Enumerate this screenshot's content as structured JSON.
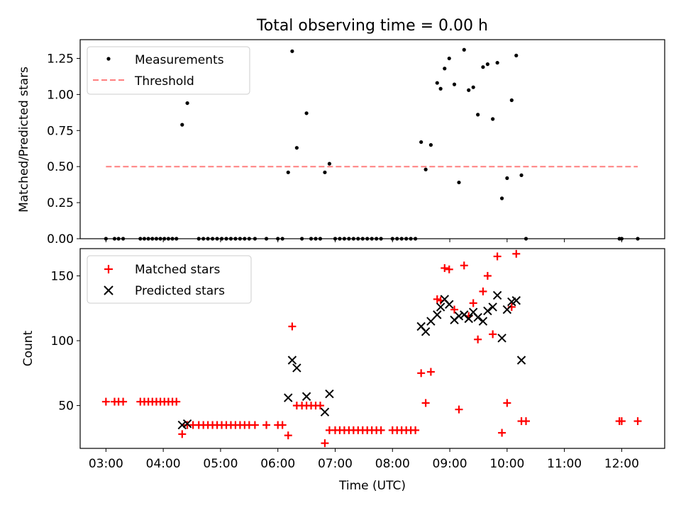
{
  "title": "Total observing time = 0.00 h",
  "xlabel": "Time (UTC)",
  "x_ticks": [
    "03:00",
    "04:00",
    "05:00",
    "06:00",
    "07:00",
    "08:00",
    "09:00",
    "10:00",
    "11:00",
    "12:00"
  ],
  "colors": {
    "measurements": "#000000",
    "threshold": "#ff7f7f",
    "matched": "#ff0000",
    "predicted": "#000000"
  },
  "chart_data": [
    {
      "type": "scatter",
      "title": "Total observing time = 0.00 h",
      "xlabel": "",
      "ylabel": "Matched/Predicted stars",
      "xlim": [
        2.55,
        12.75
      ],
      "ylim": [
        0,
        1.38
      ],
      "yticks": [
        "0.00",
        "0.25",
        "0.50",
        "0.75",
        "1.00",
        "1.25"
      ],
      "legend": "upper left",
      "threshold": {
        "name": "Threshold",
        "value": 0.5,
        "x_range": [
          3.0,
          12.28
        ]
      },
      "series": [
        {
          "name": "Measurements",
          "points": [
            [
              3.0,
              0
            ],
            [
              3.15,
              0
            ],
            [
              3.22,
              0
            ],
            [
              3.3,
              0
            ],
            [
              3.6,
              0
            ],
            [
              3.67,
              0
            ],
            [
              3.74,
              0
            ],
            [
              3.81,
              0
            ],
            [
              3.88,
              0
            ],
            [
              3.95,
              0
            ],
            [
              4.02,
              0
            ],
            [
              4.09,
              0
            ],
            [
              4.16,
              0
            ],
            [
              4.23,
              0
            ],
            [
              4.33,
              0.79
            ],
            [
              4.42,
              0.94
            ],
            [
              4.62,
              0
            ],
            [
              4.7,
              0
            ],
            [
              4.78,
              0
            ],
            [
              4.86,
              0
            ],
            [
              4.94,
              0
            ],
            [
              5.02,
              0
            ],
            [
              5.1,
              0
            ],
            [
              5.18,
              0
            ],
            [
              5.26,
              0
            ],
            [
              5.34,
              0
            ],
            [
              5.42,
              0
            ],
            [
              5.5,
              0
            ],
            [
              5.6,
              0
            ],
            [
              5.8,
              0
            ],
            [
              6.0,
              0
            ],
            [
              6.08,
              0
            ],
            [
              6.18,
              0.46
            ],
            [
              6.25,
              1.3
            ],
            [
              6.33,
              0.63
            ],
            [
              6.42,
              0
            ],
            [
              6.5,
              0.87
            ],
            [
              6.58,
              0
            ],
            [
              6.66,
              0
            ],
            [
              6.74,
              0
            ],
            [
              6.82,
              0.46
            ],
            [
              6.9,
              0.52
            ],
            [
              7.0,
              0
            ],
            [
              7.08,
              0
            ],
            [
              7.16,
              0
            ],
            [
              7.24,
              0
            ],
            [
              7.32,
              0
            ],
            [
              7.4,
              0
            ],
            [
              7.48,
              0
            ],
            [
              7.56,
              0
            ],
            [
              7.64,
              0
            ],
            [
              7.72,
              0
            ],
            [
              7.8,
              0
            ],
            [
              8.0,
              0
            ],
            [
              8.08,
              0
            ],
            [
              8.16,
              0
            ],
            [
              8.24,
              0
            ],
            [
              8.32,
              0
            ],
            [
              8.4,
              0
            ],
            [
              8.5,
              0.67
            ],
            [
              8.58,
              0.48
            ],
            [
              8.67,
              0.65
            ],
            [
              8.78,
              1.08
            ],
            [
              8.84,
              1.04
            ],
            [
              8.91,
              1.18
            ],
            [
              8.99,
              1.25
            ],
            [
              9.08,
              1.07
            ],
            [
              9.16,
              0.39
            ],
            [
              9.25,
              1.31
            ],
            [
              9.33,
              1.03
            ],
            [
              9.41,
              1.05
            ],
            [
              9.49,
              0.86
            ],
            [
              9.58,
              1.19
            ],
            [
              9.66,
              1.21
            ],
            [
              9.75,
              0.83
            ],
            [
              9.83,
              1.22
            ],
            [
              9.91,
              0.28
            ],
            [
              10.0,
              0.42
            ],
            [
              10.08,
              0.96
            ],
            [
              10.16,
              1.27
            ],
            [
              10.25,
              0.44
            ],
            [
              10.33,
              0
            ],
            [
              11.96,
              0
            ],
            [
              12.0,
              0
            ],
            [
              12.28,
              0
            ]
          ]
        }
      ]
    },
    {
      "type": "scatter",
      "title": "",
      "xlabel": "Time (UTC)",
      "ylabel": "Count",
      "xlim": [
        2.55,
        12.75
      ],
      "ylim": [
        17,
        171
      ],
      "yticks": [
        "50",
        "100",
        "150"
      ],
      "legend": "upper left",
      "series": [
        {
          "name": "Matched stars",
          "marker": "plus",
          "points": [
            [
              3.0,
              53
            ],
            [
              3.15,
              53
            ],
            [
              3.22,
              53
            ],
            [
              3.3,
              53
            ],
            [
              3.6,
              53
            ],
            [
              3.67,
              53
            ],
            [
              3.74,
              53
            ],
            [
              3.81,
              53
            ],
            [
              3.88,
              53
            ],
            [
              3.95,
              53
            ],
            [
              4.02,
              53
            ],
            [
              4.09,
              53
            ],
            [
              4.16,
              53
            ],
            [
              4.23,
              53
            ],
            [
              4.33,
              28
            ],
            [
              4.42,
              35
            ],
            [
              4.52,
              35
            ],
            [
              4.62,
              35
            ],
            [
              4.7,
              35
            ],
            [
              4.78,
              35
            ],
            [
              4.86,
              35
            ],
            [
              4.94,
              35
            ],
            [
              5.02,
              35
            ],
            [
              5.1,
              35
            ],
            [
              5.18,
              35
            ],
            [
              5.26,
              35
            ],
            [
              5.34,
              35
            ],
            [
              5.42,
              35
            ],
            [
              5.5,
              35
            ],
            [
              5.6,
              35
            ],
            [
              5.8,
              35
            ],
            [
              6.0,
              35
            ],
            [
              6.08,
              35
            ],
            [
              6.18,
              27
            ],
            [
              6.25,
              111
            ],
            [
              6.33,
              50
            ],
            [
              6.42,
              50
            ],
            [
              6.5,
              50
            ],
            [
              6.58,
              50
            ],
            [
              6.66,
              50
            ],
            [
              6.74,
              50
            ],
            [
              6.82,
              21
            ],
            [
              6.9,
              31
            ],
            [
              7.0,
              31
            ],
            [
              7.08,
              31
            ],
            [
              7.16,
              31
            ],
            [
              7.24,
              31
            ],
            [
              7.32,
              31
            ],
            [
              7.4,
              31
            ],
            [
              7.48,
              31
            ],
            [
              7.56,
              31
            ],
            [
              7.64,
              31
            ],
            [
              7.72,
              31
            ],
            [
              7.8,
              31
            ],
            [
              8.0,
              31
            ],
            [
              8.08,
              31
            ],
            [
              8.16,
              31
            ],
            [
              8.24,
              31
            ],
            [
              8.32,
              31
            ],
            [
              8.4,
              31
            ],
            [
              8.5,
              75
            ],
            [
              8.58,
              52
            ],
            [
              8.67,
              76
            ],
            [
              8.78,
              132
            ],
            [
              8.84,
              131
            ],
            [
              8.91,
              156
            ],
            [
              8.99,
              155
            ],
            [
              9.08,
              124
            ],
            [
              9.16,
              47
            ],
            [
              9.25,
              158
            ],
            [
              9.33,
              119
            ],
            [
              9.41,
              129
            ],
            [
              9.49,
              101
            ],
            [
              9.58,
              138
            ],
            [
              9.66,
              150
            ],
            [
              9.75,
              105
            ],
            [
              9.83,
              165
            ],
            [
              9.91,
              29
            ],
            [
              10.0,
              52
            ],
            [
              10.08,
              126
            ],
            [
              10.16,
              167
            ],
            [
              10.25,
              38
            ],
            [
              10.33,
              38
            ],
            [
              11.96,
              38
            ],
            [
              12.0,
              38
            ],
            [
              12.28,
              38
            ]
          ]
        },
        {
          "name": "Predicted stars",
          "marker": "x",
          "points": [
            [
              4.33,
              35
            ],
            [
              4.42,
              36
            ],
            [
              6.18,
              56
            ],
            [
              6.25,
              85
            ],
            [
              6.33,
              79
            ],
            [
              6.5,
              57
            ],
            [
              6.82,
              45
            ],
            [
              6.9,
              59
            ],
            [
              8.5,
              111
            ],
            [
              8.58,
              107
            ],
            [
              8.67,
              115
            ],
            [
              8.78,
              120
            ],
            [
              8.84,
              126
            ],
            [
              8.91,
              132
            ],
            [
              8.99,
              128
            ],
            [
              9.08,
              116
            ],
            [
              9.16,
              119
            ],
            [
              9.25,
              120
            ],
            [
              9.33,
              117
            ],
            [
              9.41,
              122
            ],
            [
              9.49,
              118
            ],
            [
              9.58,
              115
            ],
            [
              9.66,
              123
            ],
            [
              9.75,
              126
            ],
            [
              9.83,
              135
            ],
            [
              9.91,
              102
            ],
            [
              10.0,
              124
            ],
            [
              10.08,
              130
            ],
            [
              10.16,
              131
            ],
            [
              10.25,
              85
            ]
          ]
        }
      ]
    }
  ]
}
